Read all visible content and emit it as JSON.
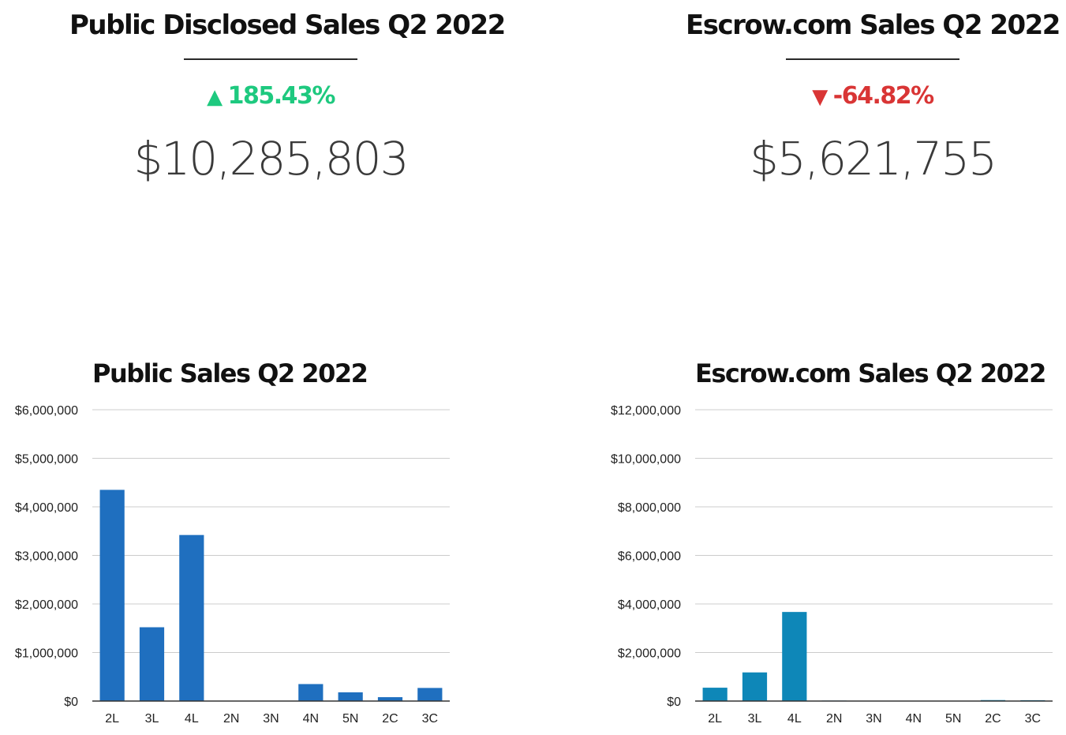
{
  "kpis": {
    "public": {
      "title": "Public Disclosed Sales Q2 2022",
      "change": "185.43%",
      "change_direction": "up",
      "change_color": "#1ec97f",
      "arrow_icon": "triangle-up-icon",
      "value": "$10,285,803"
    },
    "escrow": {
      "title": "Escrow.com Sales Q2 2022",
      "change": "-64.82%",
      "change_direction": "down",
      "change_color": "#d93535",
      "arrow_icon": "triangle-down-icon",
      "value": "$5,621,755"
    }
  },
  "chart_data": [
    {
      "type": "bar",
      "title": "Public Sales Q2 2022",
      "categories": [
        "2L",
        "3L",
        "4L",
        "2N",
        "3N",
        "4N",
        "5N",
        "2C",
        "3C"
      ],
      "values": [
        4350000,
        1520000,
        3420000,
        0,
        0,
        350000,
        180000,
        80000,
        270000
      ],
      "ylim": [
        0,
        6000000
      ],
      "yticks": [
        0,
        1000000,
        2000000,
        3000000,
        4000000,
        5000000,
        6000000
      ],
      "ytick_labels": [
        "$0",
        "$1,000,000",
        "$2,000,000",
        "$3,000,000",
        "$4,000,000",
        "$5,000,000",
        "$6,000,000"
      ],
      "xlabel": "",
      "ylabel": "",
      "grid": true,
      "legend": "none",
      "bar_color": "#1f6fbf"
    },
    {
      "type": "bar",
      "title": "Escrow.com Sales Q2 2022",
      "categories": [
        "2L",
        "3L",
        "4L",
        "2N",
        "3N",
        "4N",
        "5N",
        "2C",
        "3C"
      ],
      "values": [
        550000,
        1180000,
        3670000,
        20000,
        15000,
        10000,
        10000,
        40000,
        35000
      ],
      "ylim": [
        0,
        12000000
      ],
      "yticks": [
        0,
        2000000,
        4000000,
        6000000,
        8000000,
        10000000,
        12000000
      ],
      "ytick_labels": [
        "$0",
        "$2,000,000",
        "$4,000,000",
        "$6,000,000",
        "$8,000,000",
        "$10,000,000",
        "$12,000,000"
      ],
      "xlabel": "",
      "ylabel": "",
      "grid": true,
      "legend": "none",
      "bar_color": "#0e87b8"
    }
  ]
}
